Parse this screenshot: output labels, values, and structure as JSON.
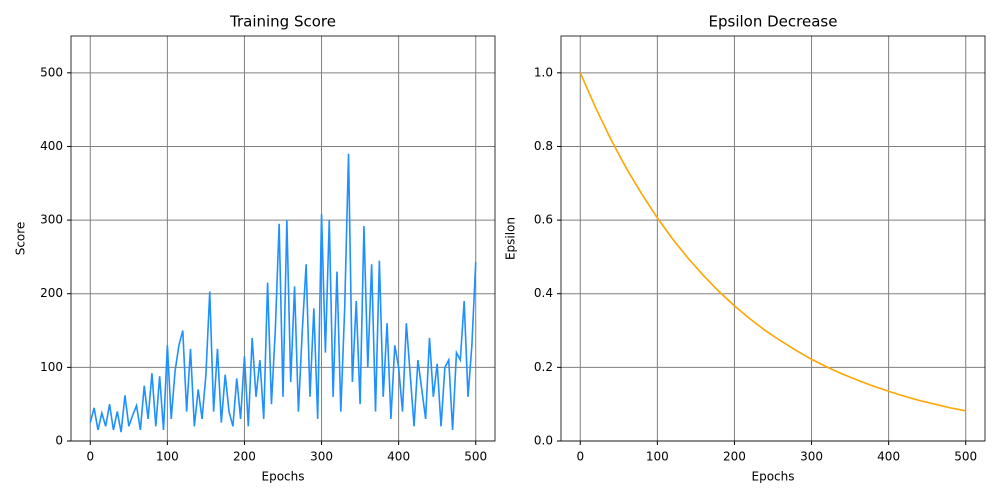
{
  "chart_data": [
    {
      "type": "line",
      "title": "Training Score",
      "x_label": "Epochs",
      "y_label": "Score",
      "color": "#1e90ff",
      "x": [
        0,
        5,
        10,
        15,
        20,
        25,
        30,
        35,
        40,
        45,
        50,
        55,
        60,
        65,
        70,
        75,
        80,
        85,
        90,
        95,
        100,
        105,
        110,
        115,
        120,
        125,
        130,
        135,
        140,
        145,
        150,
        155,
        160,
        165,
        170,
        175,
        180,
        185,
        190,
        195,
        200,
        205,
        210,
        215,
        220,
        225,
        230,
        235,
        240,
        245,
        250,
        255,
        260,
        265,
        270,
        275,
        280,
        285,
        290,
        295,
        300,
        305,
        310,
        315,
        320,
        325,
        330,
        335,
        340,
        345,
        350,
        355,
        360,
        365,
        370,
        375,
        380,
        385,
        390,
        395,
        400,
        405,
        410,
        415,
        420,
        425,
        430,
        435,
        440,
        445,
        450,
        455,
        460,
        465,
        470,
        475,
        480,
        485,
        490,
        495,
        500
      ],
      "values": [
        25,
        45,
        15,
        38,
        20,
        50,
        15,
        40,
        12,
        62,
        20,
        35,
        48,
        15,
        75,
        30,
        92,
        20,
        88,
        15,
        130,
        30,
        95,
        130,
        150,
        40,
        125,
        20,
        70,
        30,
        90,
        203,
        40,
        125,
        25,
        90,
        40,
        20,
        85,
        30,
        115,
        20,
        140,
        60,
        110,
        30,
        215,
        50,
        150,
        295,
        60,
        300,
        80,
        210,
        40,
        150,
        240,
        60,
        180,
        30,
        308,
        120,
        300,
        60,
        230,
        40,
        180,
        390,
        80,
        190,
        50,
        292,
        100,
        240,
        40,
        245,
        60,
        160,
        30,
        130,
        100,
        40,
        160,
        90,
        20,
        110,
        70,
        30,
        140,
        60,
        105,
        20,
        100,
        110,
        15,
        120,
        110,
        190,
        60,
        130,
        243
      ],
      "xlim": [
        -25,
        525
      ],
      "ylim": [
        0,
        550
      ],
      "xticks": [
        0,
        100,
        200,
        300,
        400,
        500
      ],
      "yticks": [
        0,
        100,
        200,
        300,
        400,
        500
      ],
      "grid": true
    },
    {
      "type": "line",
      "title": "Epsilon Decrease",
      "x_label": "Epochs",
      "y_label": "Epsilon",
      "color": "#ffa500",
      "x": [
        0,
        20,
        40,
        60,
        80,
        100,
        120,
        140,
        160,
        180,
        200,
        220,
        240,
        260,
        280,
        300,
        320,
        340,
        360,
        380,
        400,
        420,
        440,
        460,
        480,
        500
      ],
      "values": [
        1.0,
        0.905,
        0.818,
        0.74,
        0.67,
        0.606,
        0.548,
        0.496,
        0.449,
        0.406,
        0.367,
        0.332,
        0.3,
        0.272,
        0.246,
        0.222,
        0.201,
        0.182,
        0.165,
        0.149,
        0.135,
        0.122,
        0.11,
        0.1,
        0.09,
        0.082
      ],
      "xlim": [
        -25,
        525
      ],
      "ylim": [
        0,
        1.1
      ],
      "xticks": [
        0,
        100,
        200,
        300,
        400,
        500
      ],
      "yticks": [
        {
          "value": 0,
          "label": "0.0"
        },
        {
          "value": 0.2,
          "label": "0.2"
        },
        {
          "value": 0.4,
          "label": "0.4"
        },
        {
          "value": 0.6,
          "label": "0.6"
        },
        {
          "value": 0.8,
          "label": "0.8"
        },
        {
          "value": 1,
          "label": "1.0"
        }
      ],
      "grid": true
    }
  ]
}
